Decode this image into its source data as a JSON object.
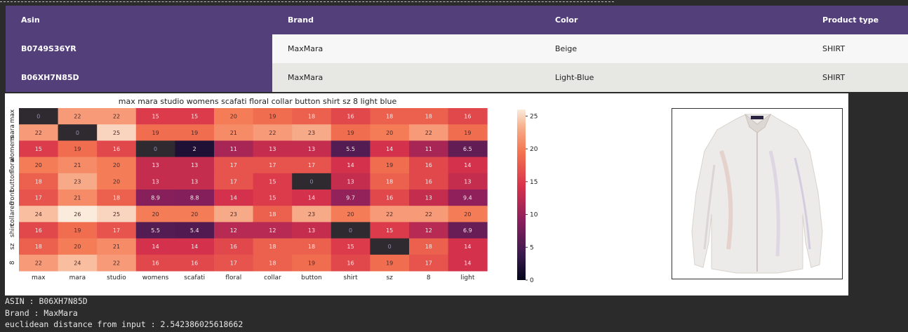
{
  "table": {
    "headers": [
      "Asin",
      "Brand",
      "Color",
      "Product type"
    ],
    "rows": [
      {
        "asin": "B0749S36YR",
        "brand": "MaxMara",
        "color": "Beige",
        "product_type": "SHIRT"
      },
      {
        "asin": "B06XH7N85D",
        "brand": "MaxMara",
        "color": "Light-Blue",
        "product_type": "SHIRT"
      }
    ]
  },
  "chart_data": {
    "type": "heatmap",
    "title": "max mara studio womens scafati floral collar button shirt sz 8 light blue",
    "x_labels": [
      "max",
      "mara",
      "studio",
      "womens",
      "scafati",
      "floral",
      "collar",
      "button",
      "shirt",
      "sz",
      "8",
      "light"
    ],
    "y_labels": [
      "max",
      "mara",
      "womens",
      "floral",
      "button",
      "front",
      "collared",
      "shirt",
      "sz",
      "8"
    ],
    "values": [
      [
        "0",
        "22",
        "22",
        "15",
        "15",
        "20",
        "19",
        "18",
        "16",
        "18",
        "18",
        "16"
      ],
      [
        "22",
        "0",
        "25",
        "19",
        "19",
        "21",
        "22",
        "23",
        "19",
        "20",
        "22",
        "19"
      ],
      [
        "15",
        "19",
        "16",
        "0",
        "2",
        "11",
        "13",
        "13",
        "5.5",
        "14",
        "11",
        "6.5"
      ],
      [
        "20",
        "21",
        "20",
        "13",
        "13",
        "17",
        "17",
        "17",
        "14",
        "19",
        "16",
        "14"
      ],
      [
        "18",
        "23",
        "20",
        "13",
        "13",
        "17",
        "15",
        "0",
        "13",
        "18",
        "16",
        "13"
      ],
      [
        "17",
        "21",
        "18",
        "8.9",
        "8.8",
        "14",
        "15",
        "14",
        "9.7",
        "16",
        "13",
        "9.4"
      ],
      [
        "24",
        "26",
        "25",
        "20",
        "20",
        "23",
        "18",
        "23",
        "20",
        "22",
        "22",
        "20"
      ],
      [
        "16",
        "19",
        "17",
        "5.5",
        "5.4",
        "12",
        "12",
        "13",
        "0",
        "15",
        "12",
        "6.9"
      ],
      [
        "18",
        "20",
        "21",
        "14",
        "14",
        "16",
        "18",
        "18",
        "15",
        "0",
        "18",
        "14"
      ],
      [
        "22",
        "24",
        "22",
        "16",
        "16",
        "17",
        "18",
        "19",
        "16",
        "19",
        "17",
        "14"
      ]
    ],
    "colorbar": {
      "min": 0,
      "max": 26,
      "ticks": [
        "0",
        "5",
        "10",
        "15",
        "20",
        "25"
      ]
    },
    "colormap": "rocket"
  },
  "photo": {
    "subject-icon": "white-shirt-icon"
  },
  "console": {
    "line1": "ASIN : B06XH7N85D",
    "line2": "Brand : MaxMara",
    "line3": "euclidean distance from input : 2.542386025618662"
  }
}
